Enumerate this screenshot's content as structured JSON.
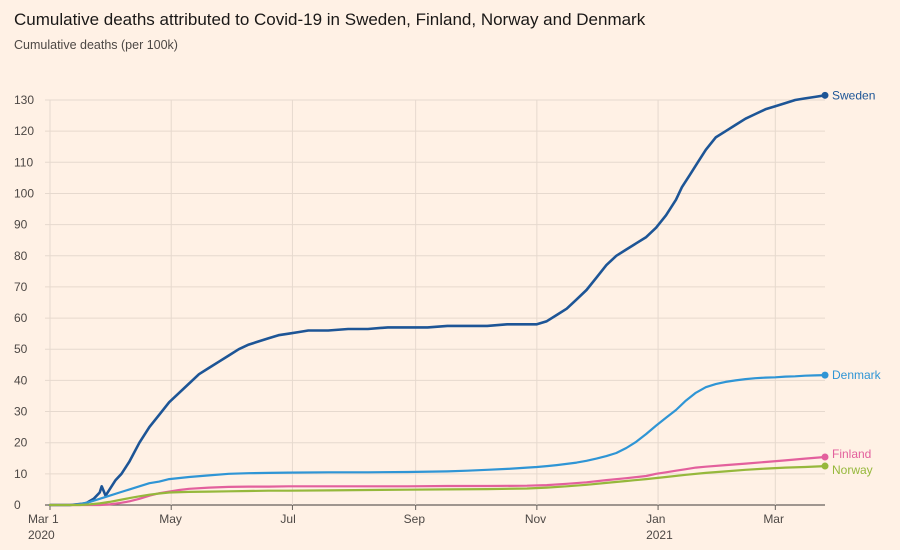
{
  "header": {
    "title": "Cumulative deaths attributed to Covid-19 in Sweden, Finland, Norway and Denmark",
    "subtitle": "Cumulative deaths (per 100k)"
  },
  "chart_data": {
    "type": "line",
    "title": "Cumulative deaths attributed to Covid-19 in Sweden, Finland, Norway and Denmark",
    "ylabel": "Cumulative deaths (per 100k)",
    "xlabel": "",
    "x_unit": "days since 2020-03-01",
    "xlim": [
      0,
      390
    ],
    "ylim": [
      0,
      130
    ],
    "y_ticks": [
      0,
      10,
      20,
      30,
      40,
      50,
      60,
      70,
      80,
      90,
      100,
      110,
      120,
      130
    ],
    "x_ticks": [
      {
        "day": 0,
        "label": "Mar 1",
        "sublabel": "2020"
      },
      {
        "day": 61,
        "label": "May",
        "sublabel": ""
      },
      {
        "day": 122,
        "label": "Jul",
        "sublabel": ""
      },
      {
        "day": 184,
        "label": "Sep",
        "sublabel": ""
      },
      {
        "day": 245,
        "label": "Nov",
        "sublabel": ""
      },
      {
        "day": 306,
        "label": "Jan",
        "sublabel": "2021"
      },
      {
        "day": 365,
        "label": "Mar",
        "sublabel": ""
      }
    ],
    "grid": true,
    "series": [
      {
        "name": "Sweden",
        "color": "#1d5596",
        "x": [
          0,
          10,
          18,
          22,
          25,
          26,
          28,
          30,
          33,
          36,
          40,
          45,
          50,
          55,
          60,
          65,
          70,
          75,
          80,
          85,
          90,
          95,
          100,
          105,
          110,
          115,
          120,
          125,
          130,
          140,
          150,
          160,
          170,
          180,
          190,
          200,
          210,
          220,
          230,
          240,
          245,
          250,
          255,
          260,
          265,
          270,
          275,
          280,
          285,
          290,
          295,
          300,
          305,
          310,
          315,
          318,
          322,
          326,
          330,
          335,
          340,
          345,
          350,
          355,
          360,
          365,
          370,
          375,
          380,
          385,
          390
        ],
        "values": [
          0,
          0,
          0.5,
          2,
          4,
          6,
          3,
          5,
          8,
          10,
          14,
          20,
          25,
          29,
          33,
          36,
          39,
          42,
          44,
          46,
          48,
          50,
          51.5,
          52.5,
          53.5,
          54.5,
          55,
          55.5,
          56,
          56,
          56.5,
          56.5,
          57,
          57,
          57,
          57.5,
          57.5,
          57.5,
          58,
          58,
          58,
          59,
          61,
          63,
          66,
          69,
          73,
          77,
          80,
          82,
          84,
          86,
          89,
          93,
          98,
          102,
          106,
          110,
          114,
          118,
          120,
          122,
          124,
          125.5,
          127,
          128,
          129,
          130,
          130.5,
          131,
          131.5
        ]
      },
      {
        "name": "Denmark",
        "color": "#2f95d5",
        "x": [
          0,
          10,
          15,
          20,
          25,
          30,
          35,
          40,
          45,
          50,
          55,
          60,
          70,
          80,
          90,
          100,
          110,
          120,
          140,
          160,
          180,
          200,
          210,
          220,
          230,
          240,
          245,
          250,
          255,
          260,
          265,
          270,
          275,
          280,
          285,
          290,
          295,
          300,
          305,
          310,
          315,
          320,
          325,
          330,
          335,
          340,
          345,
          350,
          355,
          360,
          365,
          370,
          375,
          380,
          385,
          390
        ],
        "values": [
          0,
          0,
          0.3,
          1,
          2,
          3,
          4,
          5,
          6,
          7,
          7.5,
          8.3,
          9,
          9.5,
          10,
          10.2,
          10.3,
          10.4,
          10.5,
          10.5,
          10.6,
          10.8,
          11,
          11.3,
          11.6,
          12,
          12.2,
          12.5,
          12.8,
          13.2,
          13.6,
          14.2,
          14.9,
          15.7,
          16.7,
          18.3,
          20.3,
          22.8,
          25.5,
          28,
          30.5,
          33.5,
          36,
          37.8,
          38.8,
          39.5,
          40,
          40.4,
          40.7,
          40.9,
          41,
          41.2,
          41.3,
          41.5,
          41.6,
          41.7
        ]
      },
      {
        "name": "Finland",
        "color": "#e3609d",
        "x": [
          0,
          25,
          30,
          35,
          40,
          45,
          50,
          55,
          60,
          65,
          70,
          80,
          90,
          100,
          110,
          120,
          140,
          160,
          180,
          200,
          220,
          240,
          250,
          260,
          270,
          280,
          290,
          300,
          305,
          310,
          315,
          320,
          325,
          330,
          340,
          350,
          360,
          370,
          380,
          390
        ],
        "values": [
          0,
          0,
          0.2,
          0.6,
          1.2,
          2,
          3,
          3.8,
          4.3,
          4.8,
          5.2,
          5.6,
          5.8,
          5.9,
          5.9,
          6,
          6,
          6,
          6,
          6.1,
          6.1,
          6.2,
          6.4,
          6.8,
          7.3,
          8,
          8.6,
          9.3,
          10,
          10.5,
          11,
          11.5,
          12,
          12.3,
          12.8,
          13.3,
          13.8,
          14.3,
          14.9,
          15.4
        ]
      },
      {
        "name": "Norway",
        "color": "#96b83c",
        "x": [
          0,
          15,
          20,
          25,
          30,
          35,
          40,
          45,
          50,
          55,
          60,
          70,
          80,
          90,
          100,
          110,
          120,
          140,
          160,
          180,
          200,
          220,
          240,
          250,
          260,
          270,
          280,
          290,
          300,
          310,
          320,
          330,
          340,
          350,
          360,
          370,
          380,
          390
        ],
        "values": [
          0,
          0,
          0.2,
          0.5,
          1,
          1.6,
          2.2,
          2.8,
          3.3,
          3.7,
          4,
          4.2,
          4.3,
          4.4,
          4.5,
          4.6,
          4.6,
          4.7,
          4.8,
          4.9,
          5,
          5.1,
          5.3,
          5.6,
          6,
          6.5,
          7.1,
          7.7,
          8.3,
          9,
          9.7,
          10.3,
          10.8,
          11.3,
          11.7,
          12,
          12.2,
          12.5
        ]
      }
    ]
  }
}
